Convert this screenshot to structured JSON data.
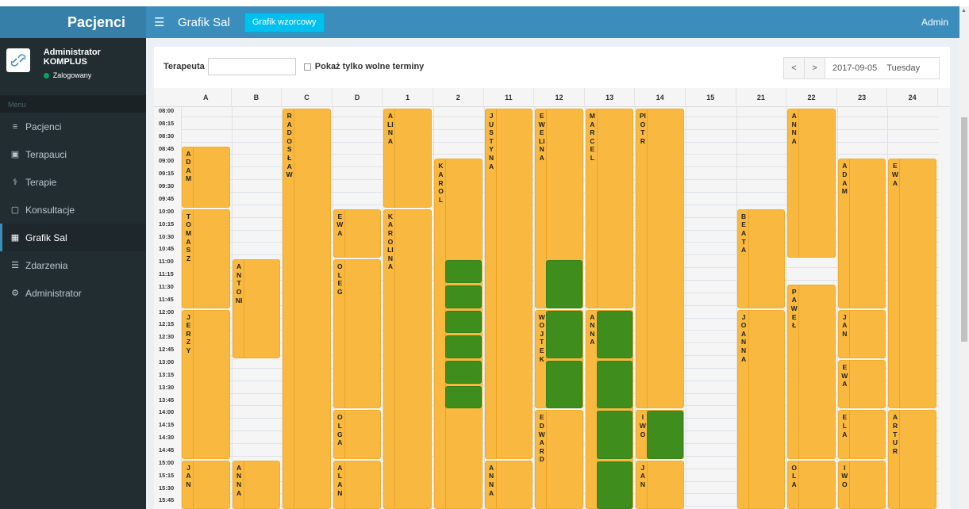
{
  "brand": "Pacjenci",
  "user": {
    "name": "Administrator KOMPLUS",
    "status": "Zalogowany"
  },
  "menu_header": "Menu",
  "menu": [
    {
      "label": "Pacjenci",
      "icon": "bed-icon"
    },
    {
      "label": "Terapauci",
      "icon": "briefcase-icon"
    },
    {
      "label": "Terapie",
      "icon": "stethoscope-icon"
    },
    {
      "label": "Konsultacje",
      "icon": "calendar-icon"
    },
    {
      "label": "Grafik Sal",
      "icon": "calendar-grid-icon",
      "active": true
    },
    {
      "label": "Zdarzenia",
      "icon": "list-icon"
    },
    {
      "label": "Administrator",
      "icon": "cogs-icon"
    }
  ],
  "header": {
    "title": "Grafik Sal",
    "button": "Grafik wzorcowy",
    "user": "Admin"
  },
  "filter": {
    "therapist_label": "Terapeuta",
    "therapist_value": "",
    "only_free_label": "Pokaż tylko wolne terminy"
  },
  "date_nav": {
    "prev": "<",
    "next": ">",
    "date": "2017-09-05",
    "day": "Tuesday"
  },
  "rooms": [
    "A",
    "B",
    "C",
    "D",
    "1",
    "2",
    "11",
    "12",
    "13",
    "14",
    "15",
    "21",
    "22",
    "23",
    "24"
  ],
  "times": [
    "08:00",
    "08:15",
    "08:30",
    "08:45",
    "09:00",
    "09:15",
    "09:30",
    "09:45",
    "10:00",
    "10:15",
    "10:30",
    "10:45",
    "11:00",
    "11:15",
    "11:30",
    "11:45",
    "12:00",
    "12:15",
    "12:30",
    "12:45",
    "13:00",
    "13:15",
    "13:30",
    "13:45",
    "14:00",
    "14:15",
    "14:30",
    "14:45",
    "15:00",
    "15:15",
    "15:30",
    "15:45"
  ],
  "bookings": [
    {
      "room": "A",
      "name": "ADAM",
      "start": 3,
      "end": 8
    },
    {
      "room": "A",
      "name": "TOMASZ",
      "start": 8,
      "end": 16
    },
    {
      "room": "A",
      "name": "JERZY",
      "start": 16,
      "end": 28
    },
    {
      "room": "A",
      "name": "JAN",
      "start": 28,
      "end": 32
    },
    {
      "room": "B",
      "name": "ANTONI",
      "start": 12,
      "end": 20
    },
    {
      "room": "B",
      "name": "ANNA",
      "start": 28,
      "end": 32
    },
    {
      "room": "C",
      "name": "RADOSŁAW",
      "start": 0,
      "end": 32
    },
    {
      "room": "D",
      "name": "EWA",
      "start": 8,
      "end": 12
    },
    {
      "room": "D",
      "name": "OLEG",
      "start": 12,
      "end": 24
    },
    {
      "room": "D",
      "name": "OLGA",
      "start": 24,
      "end": 28
    },
    {
      "room": "D",
      "name": "ALAN",
      "start": 28,
      "end": 32
    },
    {
      "room": "1",
      "name": "ALINA",
      "start": 0,
      "end": 8
    },
    {
      "room": "1",
      "name": "KAROLINA",
      "start": 8,
      "end": 32
    },
    {
      "room": "2",
      "name": "KAROL",
      "start": 4,
      "end": 32
    },
    {
      "room": "11",
      "name": "JUSTYNA",
      "start": 0,
      "end": 28
    },
    {
      "room": "11",
      "name": "ANNA",
      "start": 28,
      "end": 32
    },
    {
      "room": "12",
      "name": "EWELINA",
      "start": 0,
      "end": 16
    },
    {
      "room": "12",
      "name": "WOJTEK",
      "start": 16,
      "end": 24
    },
    {
      "room": "12",
      "name": "EDWARD",
      "start": 24,
      "end": 32
    },
    {
      "room": "13",
      "name": "MARCEL",
      "start": 0,
      "end": 16
    },
    {
      "room": "13",
      "name": "ANNA",
      "start": 16,
      "end": 32
    },
    {
      "room": "14",
      "name": "PIOTR",
      "start": 0,
      "end": 24
    },
    {
      "room": "14",
      "name": "IWO",
      "start": 24,
      "end": 28
    },
    {
      "room": "14",
      "name": "JAN",
      "start": 28,
      "end": 32
    },
    {
      "room": "21",
      "name": "BEATA",
      "start": 8,
      "end": 16
    },
    {
      "room": "21",
      "name": "JOANNA",
      "start": 16,
      "end": 32
    },
    {
      "room": "22",
      "name": "ANNA",
      "start": 0,
      "end": 12
    },
    {
      "room": "22",
      "name": "PAWEŁ",
      "start": 14,
      "end": 28
    },
    {
      "room": "22",
      "name": "OLA",
      "start": 28,
      "end": 32
    },
    {
      "room": "23",
      "name": "ADAM",
      "start": 4,
      "end": 16
    },
    {
      "room": "23",
      "name": "JAN",
      "start": 16,
      "end": 20
    },
    {
      "room": "23",
      "name": "EWA",
      "start": 20,
      "end": 24
    },
    {
      "room": "23",
      "name": "ELA",
      "start": 24,
      "end": 28
    },
    {
      "room": "23",
      "name": "IWO",
      "start": 28,
      "end": 32
    },
    {
      "room": "24",
      "name": "EWA",
      "start": 4,
      "end": 24
    },
    {
      "room": "24",
      "name": "ARTUR",
      "start": 24,
      "end": 32
    }
  ],
  "free_slots": [
    {
      "room": "2",
      "start": 12,
      "end": 14
    },
    {
      "room": "2",
      "start": 14,
      "end": 16
    },
    {
      "room": "2",
      "start": 16,
      "end": 18
    },
    {
      "room": "2",
      "start": 18,
      "end": 20
    },
    {
      "room": "2",
      "start": 20,
      "end": 22
    },
    {
      "room": "2",
      "start": 22,
      "end": 24
    },
    {
      "room": "12",
      "start": 12,
      "end": 16
    },
    {
      "room": "12",
      "start": 16,
      "end": 20
    },
    {
      "room": "12",
      "start": 20,
      "end": 24
    },
    {
      "room": "13",
      "start": 16,
      "end": 20
    },
    {
      "room": "13",
      "start": 20,
      "end": 24
    },
    {
      "room": "13",
      "start": 24,
      "end": 28
    },
    {
      "room": "13",
      "start": 28,
      "end": 32
    },
    {
      "room": "14",
      "start": 24,
      "end": 28
    }
  ],
  "colors": {
    "booking": "#f9b940",
    "free": "#3f8d1c",
    "header": "#3c8dbc",
    "sidebar": "#222d32",
    "button": "#00c0ef"
  }
}
